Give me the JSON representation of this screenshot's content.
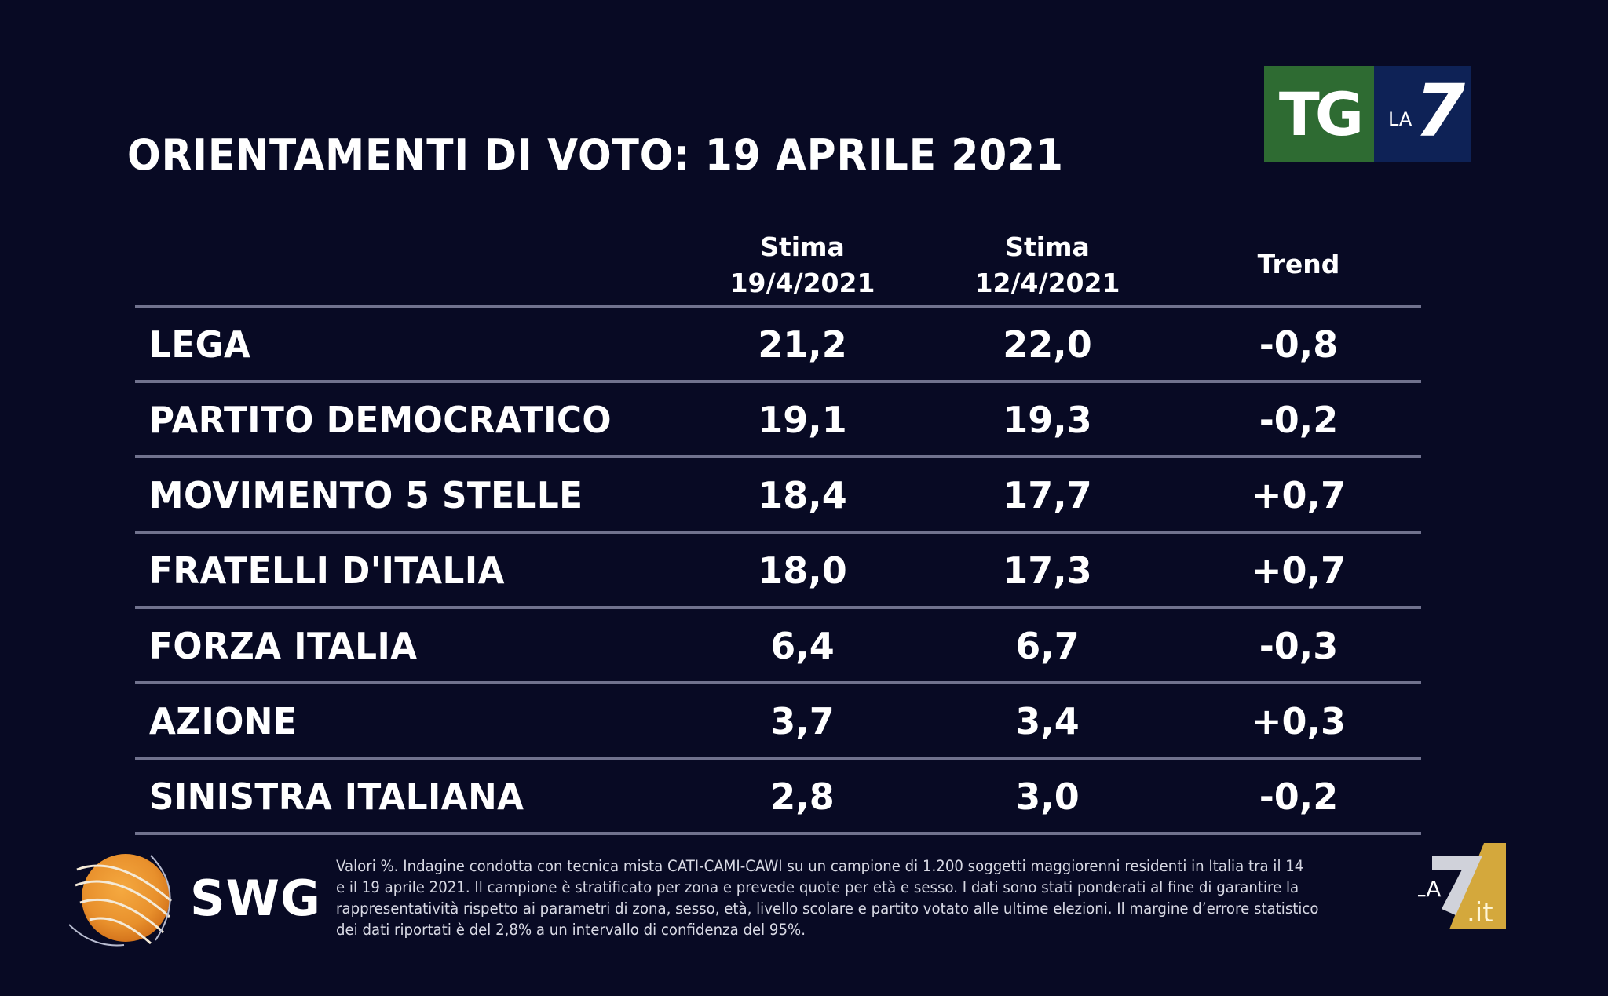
{
  "title": "ORIENTAMENTI DI VOTO: 19 APRILE 2021",
  "logos": {
    "tg_la7": {
      "tg": "TG",
      "la": "LA",
      "seven": "7"
    },
    "swg": "SWG",
    "la7_it": {
      "la": "LA",
      "seven": "7",
      "it": ".it"
    }
  },
  "colors": {
    "background": "#080a24",
    "separator": "#70728e",
    "tg_green": "#2e6b32",
    "tg_blue": "#0e2256",
    "swg_orange": "#e8902c",
    "la7_gold": "#d4a83c"
  },
  "chart_data": {
    "type": "table",
    "title": "ORIENTAMENTI DI VOTO: 19 APRILE 2021",
    "columns": [
      {
        "line1": "Stima",
        "line2": "19/4/2021"
      },
      {
        "line1": "Stima",
        "line2": "12/4/2021"
      },
      {
        "line1": "Trend",
        "line2": ""
      }
    ],
    "rows": [
      {
        "party": "LEGA",
        "stima_19": "21,2",
        "stima_12": "22,0",
        "trend": "-0,8"
      },
      {
        "party": "PARTITO DEMOCRATICO",
        "stima_19": "19,1",
        "stima_12": "19,3",
        "trend": "-0,2"
      },
      {
        "party": "MOVIMENTO 5 STELLE",
        "stima_19": "18,4",
        "stima_12": "17,7",
        "trend": "+0,7"
      },
      {
        "party": "FRATELLI D'ITALIA",
        "stima_19": "18,0",
        "stima_12": "17,3",
        "trend": "+0,7"
      },
      {
        "party": "FORZA ITALIA",
        "stima_19": "6,4",
        "stima_12": "6,7",
        "trend": "-0,3"
      },
      {
        "party": "AZIONE",
        "stima_19": "3,7",
        "stima_12": "3,4",
        "trend": "+0,3"
      },
      {
        "party": "SINISTRA ITALIANA",
        "stima_19": "2,8",
        "stima_12": "3,0",
        "trend": "-0,2"
      }
    ]
  },
  "footnote": {
    "line1": "Valori %. Indagine condotta con tecnica mista CATI-CAMI-CAWI su un campione di 1.200 soggetti maggiorenni residenti in Italia tra il 14",
    "line2": "e il 19 aprile 2021. Il campione è stratificato per zona e prevede quote per età e sesso. I dati sono stati ponderati al fine di garantire la",
    "line3": "rappresentatività rispetto ai parametri di zona, sesso, età, livello scolare e partito votato alle ultime elezioni. Il margine d’errore statistico",
    "line4": "dei dati riportati è del 2,8% a un intervallo di confidenza del 95%."
  }
}
